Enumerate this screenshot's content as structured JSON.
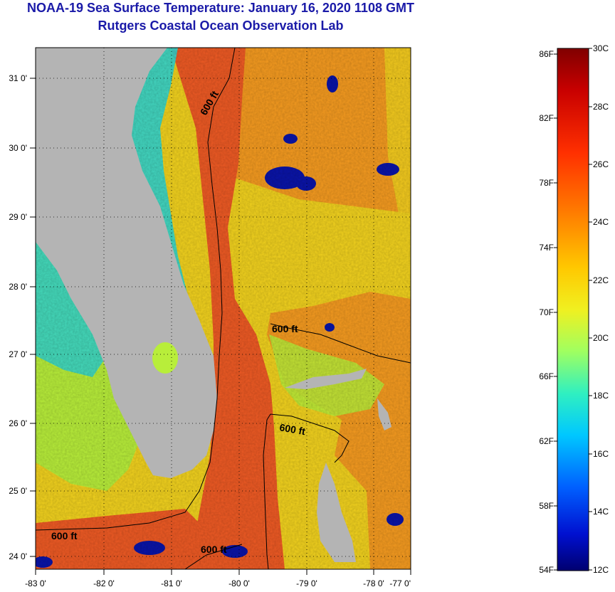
{
  "title": "NOAA-19 Sea Surface Temperature:  January 16, 2020 1108 GMT",
  "subtitle": "Rutgers Coastal Ocean Observation Lab",
  "map": {
    "lon_labels": [
      "-83 0'",
      "-82 0'",
      "-81 0'",
      "-80 0'",
      "-79 0'",
      "-78 0'",
      "-77 0'"
    ],
    "lat_labels": [
      "31 0'",
      "30 0'",
      "29 0'",
      "28 0'",
      "27 0'",
      "26 0'",
      "25 0'",
      "24 0'"
    ],
    "isobath_labels": [
      "600 ft",
      "600 ft",
      "600 ft",
      "600 ft",
      "600 ft"
    ],
    "colors": {
      "land": "#b4b4b4",
      "gulf_stream": "#ee5a24",
      "warm": "#f59b20",
      "mild": "#f2d21e",
      "cool": "#b8ee3a",
      "cold": "#2fd6d2",
      "very_cold": "#0a14a8"
    }
  },
  "colorbar": {
    "fahrenheit_labels": [
      "86F",
      "82F",
      "78F",
      "74F",
      "70F",
      "66F",
      "62F",
      "58F",
      "54F"
    ],
    "celsius_labels": [
      "30C",
      "28C",
      "26C",
      "24C",
      "22C",
      "20C",
      "18C",
      "16C",
      "14C",
      "12C"
    ],
    "stops": [
      "#800000",
      "#d40000",
      "#ff4000",
      "#ff8c00",
      "#ffd000",
      "#e8f51e",
      "#80ff80",
      "#20e0d0",
      "#00b4ff",
      "#0050ff",
      "#0000c0",
      "#000080"
    ]
  }
}
